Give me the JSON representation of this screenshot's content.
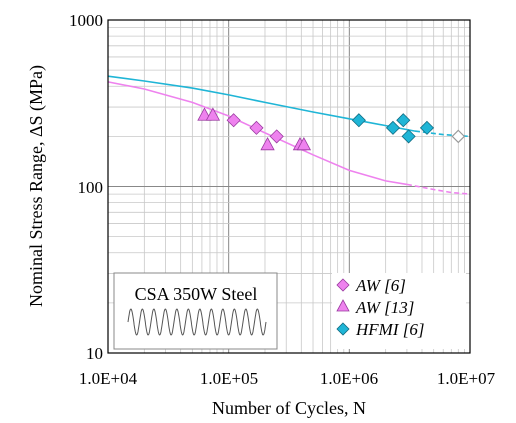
{
  "chart_data": {
    "type": "scatter",
    "title": "",
    "xlabel": "Number of Cycles, N",
    "ylabel": "Nominal Stress Range, ΔS (MPa)",
    "x_scale": "log",
    "y_scale": "log",
    "xlim": [
      10000,
      10000000
    ],
    "ylim": [
      10,
      1000
    ],
    "x_ticks": [
      10000,
      100000,
      1000000,
      10000000
    ],
    "x_tick_labels": [
      "1.0E+04",
      "1.0E+05",
      "1.0E+06",
      "1.0E+07"
    ],
    "y_ticks": [
      10,
      100,
      1000
    ],
    "y_tick_labels": [
      "10",
      "100",
      "1000"
    ],
    "grid": true,
    "inset_label": "CSA 350W Steel",
    "legend_position": "bottom-right",
    "series": [
      {
        "name": "AW [6]",
        "marker": "diamond",
        "color": "#ee82ee",
        "x": [
          110000,
          170000,
          250000
        ],
        "y": [
          250,
          225,
          200
        ]
      },
      {
        "name": "AW [13]",
        "marker": "triangle",
        "color": "#ee82ee",
        "x": [
          63000,
          74000,
          210000,
          390000,
          420000
        ],
        "y": [
          268,
          268,
          178,
          178,
          178
        ]
      },
      {
        "name": "HFMI [6]",
        "marker": "diamond",
        "color": "#1fb5d6",
        "x": [
          1200000,
          2300000,
          2800000,
          3100000,
          4400000
        ],
        "y": [
          250,
          225,
          250,
          200,
          225
        ]
      },
      {
        "marker": "diamond-open",
        "color": "#999999",
        "x": [
          8000000
        ],
        "y": [
          200
        ]
      }
    ],
    "curves": [
      {
        "color": "#ee82ee",
        "x": [
          10000,
          20000,
          50000,
          100000,
          200000,
          500000,
          1000000,
          2000000,
          3000000
        ],
        "y": [
          425,
          385,
          320,
          265,
          210,
          155,
          125,
          108,
          103
        ]
      },
      {
        "color": "#ee82ee",
        "dashed": true,
        "x": [
          3000000,
          5000000,
          7000000,
          10000000
        ],
        "y": [
          103,
          96,
          92,
          90
        ]
      },
      {
        "color": "#1fb5d6",
        "x": [
          10000,
          20000,
          50000,
          100000,
          200000,
          500000,
          1000000,
          2000000,
          3500000
        ],
        "y": [
          460,
          430,
          390,
          355,
          320,
          280,
          255,
          232,
          215
        ]
      },
      {
        "color": "#1fb5d6",
        "dashed": true,
        "x": [
          3500000,
          6000000,
          10000000
        ],
        "y": [
          215,
          205,
          200
        ]
      }
    ]
  }
}
